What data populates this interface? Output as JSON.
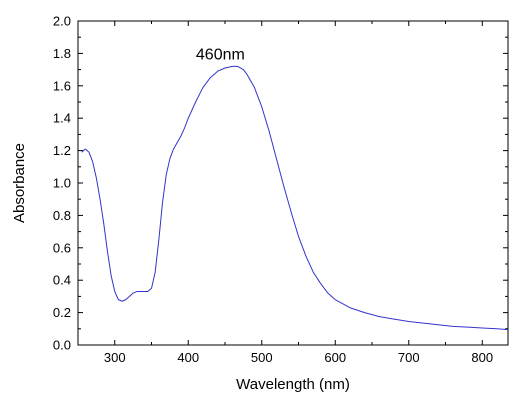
{
  "chart_data": {
    "type": "line",
    "title": "",
    "xlabel": "Wavelength (nm)",
    "ylabel": "Absorbance",
    "xlim": [
      250,
      835
    ],
    "ylim": [
      0.0,
      2.0
    ],
    "x_ticks": [
      "300",
      "400",
      "500",
      "600",
      "700",
      "800"
    ],
    "y_ticks": [
      "0.0",
      "0.2",
      "0.4",
      "0.6",
      "0.8",
      "1.0",
      "1.2",
      "1.4",
      "1.6",
      "1.8",
      "2.0"
    ],
    "grid": false,
    "line_color": "#3333cc",
    "annotation": {
      "text": "460nm",
      "x": 460,
      "y": 1.8
    },
    "series": [
      {
        "x": [
          255,
          260,
          265,
          270,
          275,
          280,
          285,
          290,
          295,
          300,
          305,
          310,
          315,
          320,
          325,
          330,
          335,
          340,
          345,
          350,
          355,
          360,
          365,
          370,
          375,
          380,
          385,
          390,
          395,
          400,
          410,
          420,
          430,
          440,
          450,
          460,
          467,
          475,
          480,
          490,
          500,
          510,
          520,
          530,
          540,
          550,
          560,
          570,
          580,
          590,
          600,
          620,
          640,
          660,
          680,
          700,
          720,
          740,
          760,
          780,
          800,
          820,
          835
        ],
        "y": [
          1.19,
          1.21,
          1.19,
          1.13,
          1.03,
          0.9,
          0.75,
          0.58,
          0.43,
          0.33,
          0.28,
          0.27,
          0.28,
          0.3,
          0.32,
          0.33,
          0.33,
          0.33,
          0.33,
          0.35,
          0.45,
          0.65,
          0.88,
          1.05,
          1.15,
          1.21,
          1.25,
          1.29,
          1.34,
          1.4,
          1.5,
          1.59,
          1.65,
          1.69,
          1.71,
          1.72,
          1.72,
          1.7,
          1.67,
          1.59,
          1.47,
          1.32,
          1.15,
          0.98,
          0.82,
          0.67,
          0.55,
          0.45,
          0.38,
          0.32,
          0.28,
          0.23,
          0.2,
          0.175,
          0.16,
          0.145,
          0.135,
          0.125,
          0.115,
          0.11,
          0.105,
          0.1,
          0.095
        ]
      }
    ]
  }
}
